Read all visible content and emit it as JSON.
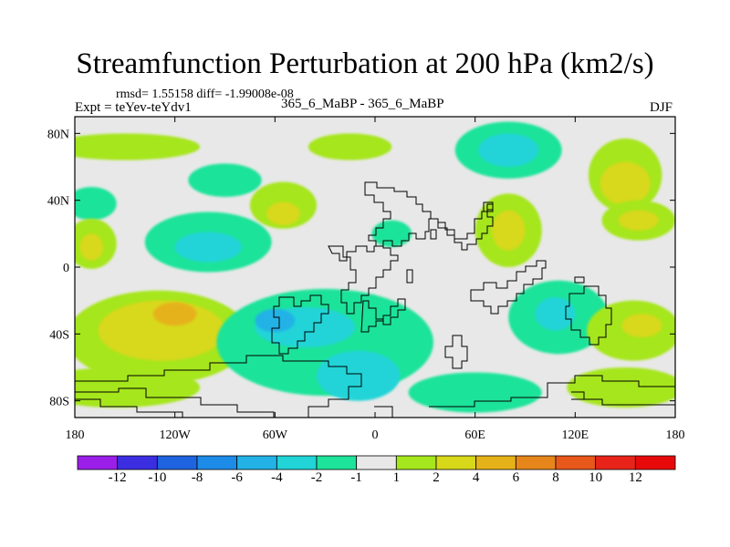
{
  "chart_data": {
    "type": "heatmap",
    "title": "Streamfunction Perturbation at 200 hPa (km2/s)",
    "stats": "rmsd= 1.55158 diff= -1.99008e-08",
    "left_label": "Expt = teYev-teYdv1",
    "center_label": "365_6_MaBP - 365_6_MaBP",
    "right_label": "DJF",
    "x_ticks": [
      "180",
      "120W",
      "60W",
      "0",
      "60E",
      "120E",
      "180"
    ],
    "y_ticks": [
      "80N",
      "40N",
      "0",
      "40S",
      "80S"
    ],
    "xlim": [
      -180,
      180
    ],
    "ylim": [
      -90,
      90
    ],
    "colorbar": {
      "labels": [
        "-12",
        "-10",
        "-8",
        "-6",
        "-4",
        "-2",
        "-1",
        "1",
        "2",
        "4",
        "6",
        "8",
        "10",
        "12"
      ],
      "colors": [
        "#9b1fe8",
        "#3b2ee0",
        "#1e63e0",
        "#1d8be8",
        "#22b2e6",
        "#20d4d8",
        "#1ee39a",
        "#e8e8e8",
        "#a6e61c",
        "#d8d81a",
        "#e6b21a",
        "#e6861a",
        "#e8581a",
        "#e8241a",
        "#e80a0a"
      ]
    },
    "field_blobs": [
      {
        "lon": -150,
        "lat": 72,
        "rx": 45,
        "ry": 8,
        "value": 1.5
      },
      {
        "lon": -15,
        "lat": 72,
        "rx": 25,
        "ry": 8,
        "value": 1.5
      },
      {
        "lon": 80,
        "lat": 70,
        "rx": 32,
        "ry": 17,
        "value": -1.5
      },
      {
        "lon": 80,
        "lat": 70,
        "rx": 18,
        "ry": 10,
        "value": -3
      },
      {
        "lon": 150,
        "lat": 55,
        "rx": 22,
        "ry": 22,
        "value": 1.5
      },
      {
        "lon": 150,
        "lat": 50,
        "rx": 15,
        "ry": 13,
        "value": 3
      },
      {
        "lon": -90,
        "lat": 52,
        "rx": 22,
        "ry": 10,
        "value": -1.5
      },
      {
        "lon": -170,
        "lat": 38,
        "rx": 15,
        "ry": 10,
        "value": -1.5
      },
      {
        "lon": -55,
        "lat": 37,
        "rx": 20,
        "ry": 14,
        "value": 1.5
      },
      {
        "lon": -55,
        "lat": 32,
        "rx": 10,
        "ry": 7,
        "value": 3
      },
      {
        "lon": 10,
        "lat": 20,
        "rx": 12,
        "ry": 8,
        "value": -1.5
      },
      {
        "lon": -100,
        "lat": 15,
        "rx": 38,
        "ry": 18,
        "value": -1.5
      },
      {
        "lon": -100,
        "lat": 12,
        "rx": 20,
        "ry": 9,
        "value": -3
      },
      {
        "lon": -170,
        "lat": 14,
        "rx": 15,
        "ry": 15,
        "value": 1.5
      },
      {
        "lon": -170,
        "lat": 12,
        "rx": 7,
        "ry": 8,
        "value": 3
      },
      {
        "lon": 80,
        "lat": 22,
        "rx": 20,
        "ry": 22,
        "value": 1.5
      },
      {
        "lon": 80,
        "lat": 22,
        "rx": 10,
        "ry": 12,
        "value": 3
      },
      {
        "lon": 158,
        "lat": 28,
        "rx": 22,
        "ry": 12,
        "value": 1.5
      },
      {
        "lon": 158,
        "lat": 28,
        "rx": 12,
        "ry": 6,
        "value": 3
      },
      {
        "lon": -130,
        "lat": -42,
        "rx": 55,
        "ry": 28,
        "value": 1.5
      },
      {
        "lon": -128,
        "lat": -38,
        "rx": 38,
        "ry": 18,
        "value": 3
      },
      {
        "lon": -120,
        "lat": -28,
        "rx": 13,
        "ry": 7,
        "value": 4.5
      },
      {
        "lon": -30,
        "lat": -45,
        "rx": 65,
        "ry": 32,
        "value": -1.5
      },
      {
        "lon": -42,
        "lat": -36,
        "rx": 30,
        "ry": 12,
        "value": -3
      },
      {
        "lon": -10,
        "lat": -65,
        "rx": 25,
        "ry": 15,
        "value": -3
      },
      {
        "lon": -60,
        "lat": -32,
        "rx": 12,
        "ry": 7,
        "value": -4.5
      },
      {
        "lon": 110,
        "lat": -30,
        "rx": 30,
        "ry": 22,
        "value": -1.5
      },
      {
        "lon": 108,
        "lat": -28,
        "rx": 12,
        "ry": 10,
        "value": -3
      },
      {
        "lon": 155,
        "lat": -38,
        "rx": 28,
        "ry": 18,
        "value": 1.5
      },
      {
        "lon": 160,
        "lat": -35,
        "rx": 12,
        "ry": 7,
        "value": 3
      },
      {
        "lon": -155,
        "lat": -72,
        "rx": 50,
        "ry": 12,
        "value": 1.5
      },
      {
        "lon": 60,
        "lat": -75,
        "rx": 40,
        "ry": 12,
        "value": -1.5
      },
      {
        "lon": 150,
        "lat": -72,
        "rx": 35,
        "ry": 12,
        "value": 1.5
      }
    ]
  }
}
